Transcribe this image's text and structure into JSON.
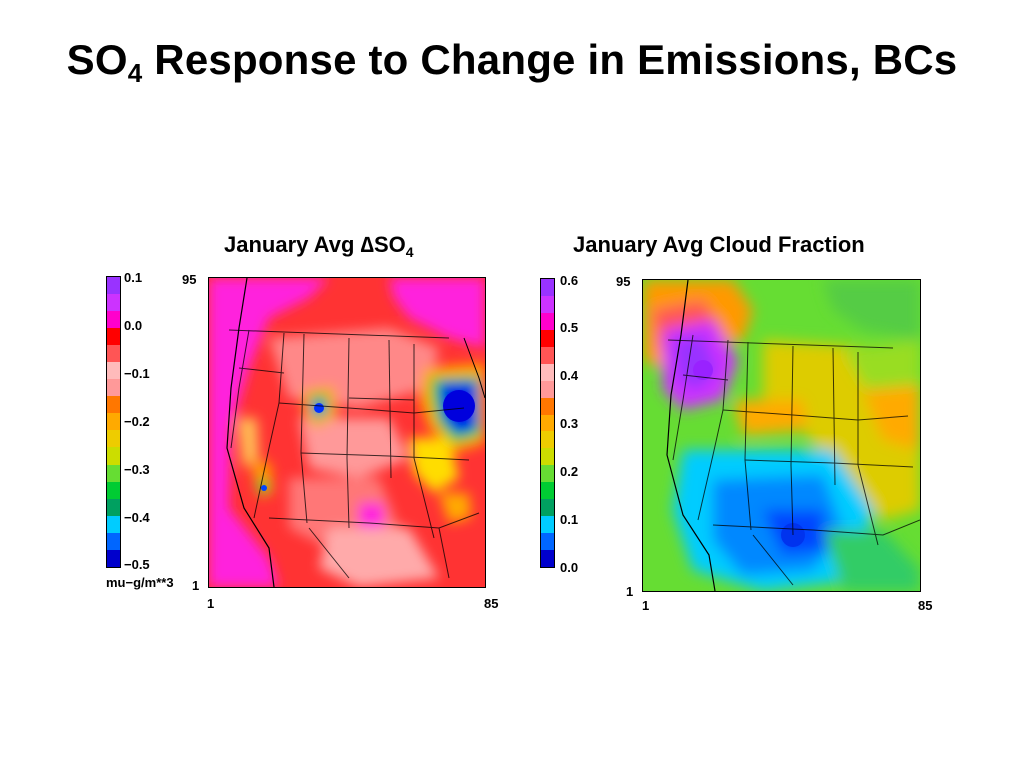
{
  "slide": {
    "title_main": "SO",
    "title_sub": "4",
    "title_rest": " Response to Change in Emissions, BCs"
  },
  "panels": [
    {
      "title_main": "January Avg ∆SO",
      "title_sub": "4",
      "colorbar_colors": [
        "#0000cc",
        "#0066ff",
        "#00ccff",
        "#00a060",
        "#00cc33",
        "#66dd33",
        "#ccdd00",
        "#eecc00",
        "#ffaa00",
        "#ff7700",
        "#ff9999",
        "#ffbbbb",
        "#ff5555",
        "#ff0000",
        "#ff00cc",
        "#cc33ff",
        "#9933ff"
      ],
      "colorbar_labels": [
        "0.1",
        "0.0",
        "−0.1",
        "−0.2",
        "−0.3",
        "−0.4",
        "−0.5"
      ],
      "unit": "mu−g/m**3",
      "y_top": "95",
      "y_bottom": "1",
      "x_left": "1",
      "x_right": "85"
    },
    {
      "title_main": "January Avg Cloud Fraction",
      "title_sub": "",
      "colorbar_colors": [
        "#0000cc",
        "#0066ff",
        "#00ccff",
        "#00a060",
        "#00cc33",
        "#66dd33",
        "#ccdd00",
        "#eecc00",
        "#ffaa00",
        "#ff7700",
        "#ff9999",
        "#ffbbbb",
        "#ff5555",
        "#ff0000",
        "#ff00cc",
        "#cc33ff",
        "#9933ff"
      ],
      "colorbar_labels": [
        "0.6",
        "0.5",
        "0.4",
        "0.3",
        "0.2",
        "0.1",
        "0.0"
      ],
      "unit": "",
      "y_top": "95",
      "y_bottom": "1",
      "x_left": "1",
      "x_right": "85"
    }
  ]
}
